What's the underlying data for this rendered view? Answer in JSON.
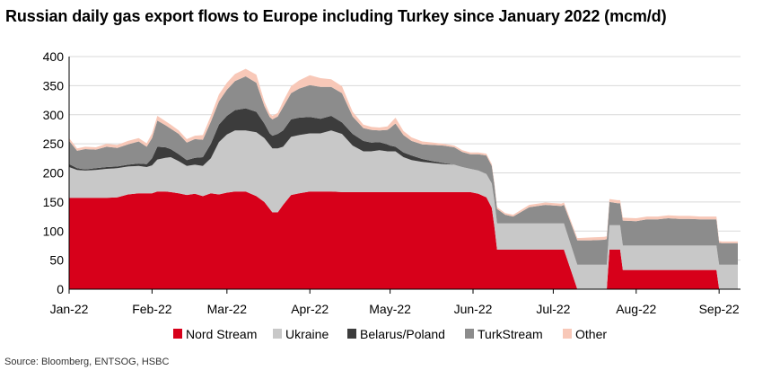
{
  "chart_data": {
    "type": "area",
    "stacked": true,
    "title": "Russian daily gas export flows to Europe including Turkey since January 2022 (mcm/d)",
    "xlabel": "",
    "ylabel": "",
    "ylim": [
      0,
      400
    ],
    "yticks": [
      0,
      50,
      100,
      150,
      200,
      250,
      300,
      350,
      400
    ],
    "xticks": [
      {
        "label": "Jan-22",
        "day": 0
      },
      {
        "label": "Feb-22",
        "day": 31
      },
      {
        "label": "Mar-22",
        "day": 59
      },
      {
        "label": "Apr-22",
        "day": 90
      },
      {
        "label": "May-22",
        "day": 120
      },
      {
        "label": "Jun-22",
        "day": 151
      },
      {
        "label": "Jul-22",
        "day": 181
      },
      {
        "label": "Aug-22",
        "day": 212
      },
      {
        "label": "Sep-22",
        "day": 243
      }
    ],
    "xlim": [
      0,
      251
    ],
    "grid": "horizontal",
    "legend_position": "bottom",
    "x": [
      0,
      3,
      6,
      10,
      14,
      18,
      22,
      26,
      29,
      31,
      33,
      36,
      38,
      41,
      44,
      47,
      50,
      53,
      56,
      59,
      62,
      66,
      70,
      73,
      75,
      76,
      78,
      80,
      83,
      86,
      90,
      94,
      98,
      102,
      106,
      110,
      113,
      116,
      119,
      120,
      122,
      125,
      128,
      132,
      136,
      140,
      144,
      147,
      150,
      153,
      156,
      158,
      159,
      160,
      163,
      166,
      172,
      178,
      184,
      185,
      190,
      191,
      195,
      200,
      201,
      202,
      205,
      206,
      207,
      212,
      216,
      220,
      224,
      228,
      232,
      236,
      240,
      242,
      243,
      244,
      246,
      250
    ],
    "series": [
      {
        "name": "Nord Stream",
        "color": "#d7001a",
        "values": [
          157,
          157,
          157,
          157,
          157,
          158,
          163,
          165,
          165,
          165,
          168,
          168,
          167,
          165,
          162,
          164,
          160,
          165,
          163,
          166,
          168,
          168,
          160,
          150,
          138,
          132,
          132,
          145,
          162,
          165,
          168,
          168,
          168,
          167,
          167,
          167,
          167,
          167,
          167,
          167,
          167,
          167,
          167,
          167,
          167,
          167,
          167,
          167,
          167,
          164,
          158,
          140,
          108,
          68,
          68,
          68,
          68,
          68,
          68,
          68,
          0,
          0,
          0,
          0,
          0,
          68,
          68,
          68,
          33,
          33,
          33,
          33,
          33,
          33,
          33,
          33,
          33,
          33,
          0,
          0,
          0,
          0
        ]
      },
      {
        "name": "Ukraine",
        "color": "#c8c8c8",
        "values": [
          53,
          48,
          47,
          48,
          50,
          50,
          48,
          47,
          45,
          48,
          55,
          58,
          60,
          55,
          50,
          50,
          52,
          60,
          90,
          100,
          105,
          105,
          110,
          110,
          110,
          110,
          110,
          100,
          100,
          100,
          100,
          100,
          105,
          100,
          80,
          70,
          70,
          72,
          70,
          70,
          70,
          60,
          55,
          52,
          50,
          48,
          47,
          43,
          40,
          40,
          40,
          42,
          44,
          45,
          45,
          45,
          45,
          45,
          45,
          45,
          42,
          42,
          42,
          42,
          42,
          42,
          42,
          42,
          42,
          42,
          42,
          42,
          42,
          42,
          42,
          42,
          42,
          42,
          42,
          42,
          42,
          42
        ]
      },
      {
        "name": "Belarus/Poland",
        "color": "#3c3c3c",
        "values": [
          5,
          3,
          2,
          3,
          3,
          3,
          3,
          4,
          5,
          12,
          22,
          18,
          14,
          12,
          10,
          12,
          15,
          25,
          30,
          32,
          35,
          38,
          35,
          25,
          20,
          22,
          25,
          28,
          30,
          30,
          28,
          25,
          25,
          20,
          20,
          18,
          15,
          14,
          12,
          10,
          8,
          8,
          8,
          5,
          3,
          2,
          0,
          0,
          0,
          0,
          0,
          0,
          0,
          0,
          0,
          0,
          0,
          0,
          0,
          0,
          0,
          0,
          0,
          0,
          0,
          0,
          0,
          0,
          0,
          0,
          0,
          0,
          0,
          0,
          0,
          0,
          0,
          0,
          0,
          0,
          0,
          0
        ]
      },
      {
        "name": "TurkStream",
        "color": "#8c8c8c",
        "values": [
          40,
          30,
          35,
          32,
          35,
          32,
          35,
          38,
          30,
          35,
          45,
          38,
          35,
          35,
          30,
          32,
          30,
          38,
          40,
          45,
          50,
          55,
          50,
          30,
          28,
          28,
          30,
          40,
          45,
          50,
          55,
          55,
          50,
          50,
          30,
          22,
          22,
          20,
          25,
          30,
          40,
          30,
          25,
          25,
          28,
          30,
          30,
          26,
          25,
          28,
          32,
          30,
          28,
          25,
          15,
          12,
          28,
          32,
          30,
          32,
          42,
          42,
          42,
          43,
          44,
          40,
          38,
          38,
          43,
          42,
          45,
          45,
          47,
          46,
          46,
          45,
          45,
          45,
          38,
          37,
          37,
          37
        ]
      },
      {
        "name": "Other",
        "color": "#f8c8b8",
        "values": [
          5,
          4,
          4,
          4,
          5,
          5,
          6,
          6,
          6,
          8,
          8,
          7,
          7,
          6,
          6,
          6,
          8,
          10,
          12,
          12,
          12,
          13,
          14,
          8,
          6,
          6,
          6,
          10,
          12,
          14,
          17,
          15,
          13,
          12,
          8,
          6,
          5,
          5,
          6,
          8,
          10,
          7,
          6,
          5,
          4,
          3,
          3,
          3,
          3,
          3,
          3,
          3,
          3,
          3,
          3,
          3,
          4,
          4,
          4,
          4,
          4,
          4,
          5,
          5,
          5,
          5,
          5,
          5,
          5,
          5,
          5,
          5,
          5,
          5,
          5,
          5,
          5,
          5,
          3,
          3,
          3,
          3
        ]
      }
    ],
    "legend": [
      "Nord Stream",
      "Ukraine",
      "Belarus/Poland",
      "TurkStream",
      "Other"
    ]
  },
  "source": "Source: Bloomberg, ENTSOG, HSBC"
}
